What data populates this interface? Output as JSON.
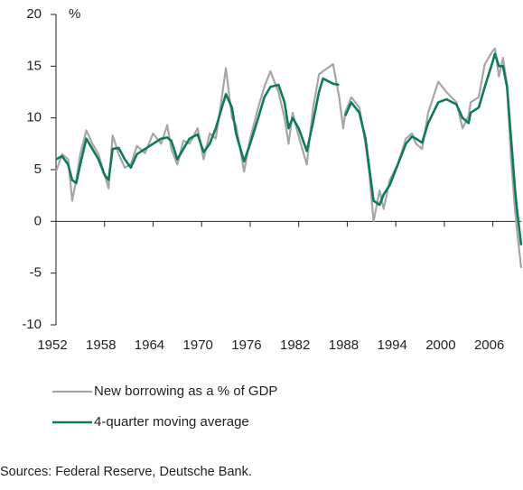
{
  "chart_data": {
    "type": "line",
    "y_unit": "%",
    "source": "Sources: Federal Reserve, Deutsche Bank.",
    "legend": "bottom",
    "grid": false,
    "xlim": [
      1952,
      2009.5
    ],
    "xticks": [
      1952,
      1958,
      1964,
      1970,
      1976,
      1982,
      1988,
      1994,
      2000,
      2006
    ],
    "ylim": [
      -10,
      20
    ],
    "yticks": [
      -10,
      -5,
      0,
      5,
      10,
      15,
      20
    ],
    "x": [
      1952.0,
      1952.75,
      1953.5,
      1954.0,
      1954.5,
      1955.0,
      1955.75,
      1956.5,
      1957.25,
      1958.0,
      1958.5,
      1959.0,
      1959.75,
      1960.5,
      1961.25,
      1962.0,
      1963.0,
      1964.0,
      1965.0,
      1965.75,
      1966.25,
      1967.0,
      1967.75,
      1968.5,
      1969.5,
      1970.25,
      1971.0,
      1971.75,
      1972.5,
      1973.0,
      1973.75,
      1974.25,
      1975.25,
      1976.0,
      1977.0,
      1977.75,
      1978.5,
      1979.5,
      1980.25,
      1980.75,
      1981.25,
      1982.0,
      1983.0,
      1983.75,
      1984.5,
      1985.0,
      1986.25,
      1987.0,
      1987.5,
      1987.75,
      1988.5,
      1989.5,
      1990.25,
      1990.75,
      1991.25,
      1992.0,
      1992.5,
      1993.25,
      1994.25,
      1995.25,
      1996.0,
      1996.5,
      1997.25,
      1998.0,
      1999.25,
      2000.25,
      2001.5,
      2002.25,
      2003.0,
      2003.25,
      2004.25,
      2005.0,
      2006.0,
      2006.25,
      2006.75,
      2007.25,
      2007.75,
      2008.25,
      2008.75,
      2009.0,
      2009.5
    ],
    "series": [
      {
        "name": "New borrowing as a % of GDP",
        "color": "#a6a6a6",
        "width": 2.2,
        "values": [
          4.8,
          6.5,
          6.0,
          2.0,
          4.0,
          6.5,
          8.8,
          7.5,
          6.5,
          4.5,
          3.2,
          8.3,
          6.5,
          5.2,
          5.5,
          7.3,
          6.6,
          8.5,
          7.5,
          9.3,
          7.0,
          5.5,
          7.8,
          7.5,
          9.0,
          6.0,
          8.5,
          8.0,
          12.0,
          14.8,
          10.0,
          9.3,
          4.8,
          8.0,
          11.0,
          13.0,
          14.5,
          12.5,
          10.0,
          7.5,
          10.5,
          8.2,
          5.5,
          10.8,
          14.2,
          14.5,
          15.2,
          12.0,
          9.0,
          10.5,
          12.0,
          11.0,
          7.5,
          4.5,
          0.0,
          3.0,
          1.2,
          4.0,
          5.5,
          8.0,
          8.5,
          7.5,
          7.0,
          10.5,
          13.5,
          12.5,
          11.5,
          9.0,
          10.2,
          11.5,
          12.0,
          15.2,
          16.5,
          16.7,
          14.0,
          15.8,
          13.2,
          6.0,
          1.0,
          -1.0,
          -4.5
        ]
      },
      {
        "name": "4-quarter moving average",
        "color": "#0f7a5a",
        "width": 2.6,
        "values": [
          6.0,
          6.3,
          5.5,
          4.0,
          3.7,
          5.5,
          8.0,
          7.0,
          6.0,
          4.5,
          4.0,
          7.0,
          7.1,
          6.0,
          5.2,
          6.5,
          7.0,
          7.5,
          8.0,
          8.1,
          7.8,
          6.0,
          7.0,
          8.0,
          8.4,
          6.7,
          7.5,
          9.0,
          11.0,
          12.3,
          11.0,
          8.5,
          5.8,
          7.5,
          10.0,
          12.0,
          13.0,
          13.2,
          11.5,
          9.0,
          10.0,
          9.0,
          6.8,
          9.5,
          12.5,
          13.8,
          13.3,
          13.2,
          null,
          10.2,
          11.5,
          10.5,
          8.0,
          5.0,
          2.0,
          1.6,
          2.6,
          3.5,
          5.5,
          7.5,
          8.2,
          8.0,
          7.6,
          9.5,
          11.5,
          11.8,
          11.3,
          10.0,
          9.5,
          10.5,
          11.0,
          13.0,
          15.5,
          16.2,
          15.0,
          15.0,
          13.0,
          8.0,
          3.0,
          1.0,
          -2.3
        ]
      }
    ]
  }
}
